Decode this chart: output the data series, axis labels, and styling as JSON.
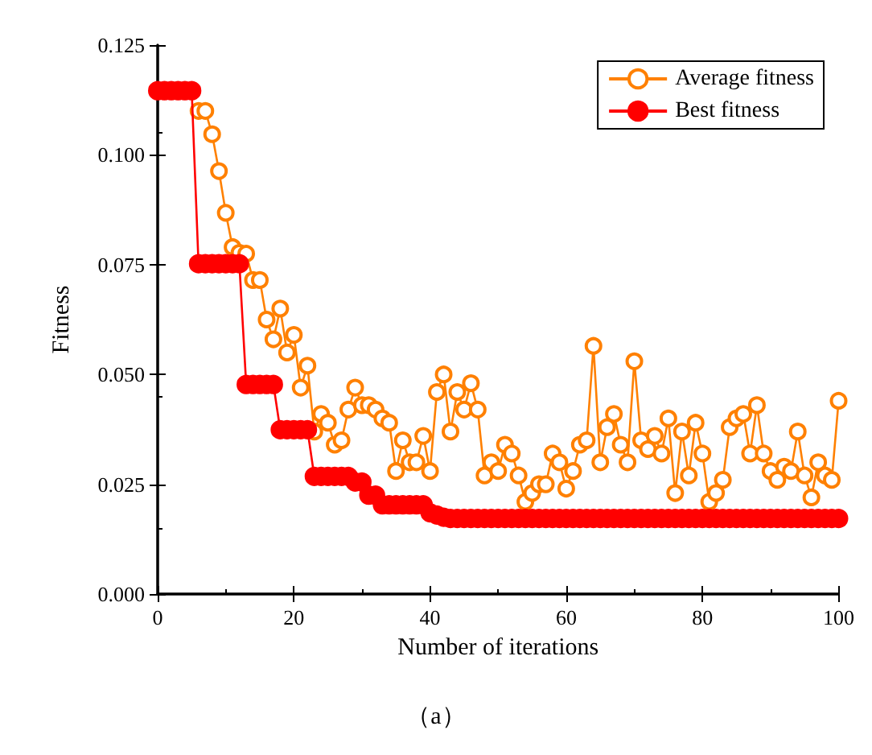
{
  "chart_data": {
    "type": "line",
    "xlabel": "Number of iterations",
    "ylabel": "Fitness",
    "annotations": [
      "（a）"
    ],
    "x": [
      0,
      1,
      2,
      3,
      4,
      5,
      6,
      7,
      8,
      9,
      10,
      11,
      12,
      13,
      14,
      15,
      16,
      17,
      18,
      19,
      20,
      21,
      22,
      23,
      24,
      25,
      26,
      27,
      28,
      29,
      30,
      31,
      32,
      33,
      34,
      35,
      36,
      37,
      38,
      39,
      40,
      41,
      42,
      43,
      44,
      45,
      46,
      47,
      48,
      49,
      50,
      51,
      52,
      53,
      54,
      55,
      56,
      57,
      58,
      59,
      60,
      61,
      62,
      63,
      64,
      65,
      66,
      67,
      68,
      69,
      70,
      71,
      72,
      73,
      74,
      75,
      76,
      77,
      78,
      79,
      80,
      81,
      82,
      83,
      84,
      85,
      86,
      87,
      88,
      89,
      90,
      91,
      92,
      93,
      94,
      95,
      96,
      97,
      98,
      99,
      100
    ],
    "series": [
      {
        "name": "Average fitness",
        "color": "#ff8000",
        "marker": "circle",
        "values": [
          null,
          null,
          null,
          null,
          null,
          null,
          0.11,
          0.11,
          0.1047,
          0.0963,
          0.0868,
          0.079,
          0.0777,
          0.0775,
          0.0715,
          0.0715,
          0.0625,
          0.058,
          0.065,
          0.055,
          0.059,
          0.047,
          0.052,
          0.037,
          0.041,
          0.039,
          0.034,
          0.035,
          0.042,
          0.047,
          0.043,
          0.043,
          0.042,
          0.04,
          0.039,
          0.028,
          0.035,
          0.03,
          0.03,
          0.036,
          0.028,
          0.046,
          0.05,
          0.037,
          0.046,
          0.042,
          0.048,
          0.042,
          0.027,
          0.03,
          0.028,
          0.034,
          0.032,
          0.027,
          0.021,
          0.023,
          0.025,
          0.025,
          0.032,
          0.03,
          0.024,
          0.028,
          0.034,
          0.035,
          0.0565,
          0.03,
          0.038,
          0.041,
          0.034,
          0.03,
          0.053,
          0.035,
          0.033,
          0.036,
          0.032,
          0.04,
          0.023,
          0.037,
          0.027,
          0.039,
          0.032,
          0.021,
          0.023,
          0.026,
          0.038,
          0.04,
          0.041,
          0.032,
          0.043,
          0.032,
          0.028,
          0.026,
          0.029,
          0.028,
          0.037,
          0.027,
          0.022,
          0.03,
          0.027,
          0.026,
          0.044
        ]
      },
      {
        "name": "Best fitness",
        "color": "#ff0000",
        "marker": "circle",
        "values": [
          0.1146,
          0.1146,
          0.1146,
          0.1146,
          0.1146,
          0.1146,
          0.0752,
          0.0752,
          0.0752,
          0.0752,
          0.0752,
          0.0752,
          0.0752,
          0.0477,
          0.0477,
          0.0477,
          0.0477,
          0.0477,
          0.0374,
          0.0374,
          0.0374,
          0.0374,
          0.0374,
          0.0268,
          0.0268,
          0.0268,
          0.0268,
          0.0268,
          0.0268,
          0.0255,
          0.0255,
          0.0225,
          0.0225,
          0.0203,
          0.0203,
          0.0203,
          0.0203,
          0.0203,
          0.0203,
          0.0203,
          0.0185,
          0.018,
          0.0175,
          0.0172,
          0.0172,
          0.0172,
          0.0172,
          0.0172,
          0.0172,
          0.0172,
          0.0172,
          0.0172,
          0.0172,
          0.0172,
          0.0172,
          0.0172,
          0.0172,
          0.0172,
          0.0172,
          0.0172,
          0.0172,
          0.0172,
          0.0172,
          0.0172,
          0.0172,
          0.0172,
          0.0172,
          0.0172,
          0.0172,
          0.0172,
          0.0172,
          0.0172,
          0.0172,
          0.0172,
          0.0172,
          0.0172,
          0.0172,
          0.0172,
          0.0172,
          0.0172,
          0.0172,
          0.0172,
          0.0172,
          0.0172,
          0.0172,
          0.0172,
          0.0172,
          0.0172,
          0.0172,
          0.0172,
          0.0172,
          0.0172,
          0.0172,
          0.0172,
          0.0172,
          0.0172,
          0.0172,
          0.0172,
          0.0172,
          0.0172,
          0.0172
        ]
      }
    ],
    "xlim": [
      0,
      100
    ],
    "xticks": [
      0,
      20,
      40,
      60,
      80,
      100
    ],
    "ylim": [
      0,
      0.125
    ],
    "yticks": [
      {
        "value": 0,
        "label": "0.000"
      },
      {
        "value": 0.025,
        "label": "0.025"
      },
      {
        "value": 0.05,
        "label": "0.050"
      },
      {
        "value": 0.075,
        "label": "0.075"
      },
      {
        "value": 0.1,
        "label": "0.100"
      },
      {
        "value": 0.125,
        "label": "0.125"
      }
    ],
    "legend": "top right",
    "grid": false,
    "line_style": "solid"
  }
}
